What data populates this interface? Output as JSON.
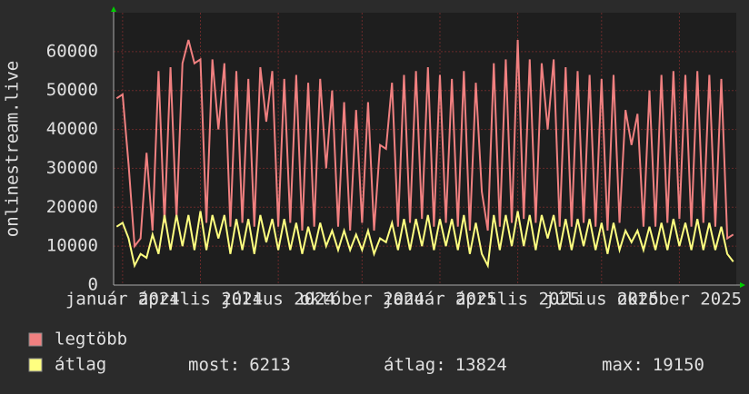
{
  "chart_data": {
    "type": "line",
    "y_label": "onlinestream.live",
    "categories": [
      null,
      "január 2024",
      null,
      null,
      null,
      null,
      null,
      null,
      null,
      null,
      null,
      null,
      null,
      null,
      "április 2024",
      null,
      null,
      null,
      null,
      null,
      null,
      null,
      null,
      null,
      null,
      null,
      null,
      "július 2024",
      null,
      null,
      null,
      null,
      null,
      null,
      null,
      null,
      null,
      null,
      null,
      null,
      null,
      "október 2024",
      null,
      null,
      null,
      null,
      null,
      null,
      null,
      null,
      null,
      null,
      null,
      null,
      "január 2025",
      null,
      null,
      null,
      null,
      null,
      null,
      null,
      null,
      null,
      null,
      null,
      null,
      "április 2025",
      null,
      null,
      null,
      null,
      null,
      null,
      null,
      null,
      null,
      null,
      null,
      null,
      null,
      "július 2025",
      null,
      null,
      null,
      null,
      null,
      null,
      null,
      null,
      null,
      null,
      null,
      null,
      "október 2025",
      null,
      null,
      null,
      null,
      null,
      null,
      null,
      null,
      null
    ],
    "series": [
      {
        "name": "legtöbb",
        "color": "#f08080",
        "values": [
          48000,
          49000,
          31000,
          10000,
          12000,
          34000,
          14000,
          55000,
          16000,
          56000,
          17000,
          57000,
          63000,
          57000,
          58000,
          16000,
          58000,
          40000,
          57000,
          15000,
          55000,
          16000,
          53000,
          15000,
          56000,
          42000,
          55000,
          15000,
          53000,
          16000,
          54000,
          14000,
          52000,
          15000,
          53000,
          30000,
          50000,
          15000,
          47000,
          14000,
          45000,
          16000,
          47000,
          14000,
          36000,
          35000,
          52000,
          15000,
          54000,
          16000,
          55000,
          17000,
          56000,
          15000,
          54000,
          16000,
          53000,
          15000,
          55000,
          14000,
          52000,
          24000,
          14000,
          57000,
          15000,
          58000,
          16000,
          63000,
          17000,
          58000,
          16000,
          57000,
          40000,
          58000,
          15000,
          56000,
          15000,
          55000,
          16000,
          54000,
          15000,
          53000,
          14000,
          54000,
          16000,
          45000,
          36000,
          44000,
          15000,
          50000,
          15000,
          54000,
          16000,
          55000,
          17000,
          54000,
          15000,
          55000,
          16000,
          54000,
          15000,
          53000,
          12000,
          13000
        ]
      },
      {
        "name": "átlag",
        "color": "#ffff80",
        "values": [
          15000,
          16000,
          12000,
          5000,
          8000,
          7000,
          13000,
          8000,
          18000,
          9000,
          18000,
          10000,
          18000,
          9000,
          19000,
          9000,
          18000,
          12000,
          18000,
          8000,
          17000,
          9000,
          17000,
          8000,
          18000,
          11000,
          17000,
          9000,
          17000,
          9000,
          16000,
          8000,
          15000,
          9000,
          16000,
          10000,
          14000,
          9000,
          14000,
          9000,
          13000,
          9000,
          14000,
          8000,
          12000,
          11000,
          16000,
          9000,
          17000,
          9000,
          17000,
          10000,
          18000,
          9000,
          17000,
          10000,
          17000,
          9000,
          18000,
          8000,
          16000,
          8000,
          5000,
          18000,
          9000,
          18000,
          10000,
          19000,
          10000,
          18000,
          9000,
          18000,
          12000,
          18000,
          9000,
          17000,
          9000,
          17000,
          10000,
          17000,
          9000,
          16000,
          8000,
          16000,
          9000,
          14000,
          11000,
          14000,
          9000,
          15000,
          9000,
          16000,
          9000,
          17000,
          10000,
          16000,
          9000,
          17000,
          9000,
          16000,
          9000,
          15000,
          8000,
          6000
        ]
      }
    ],
    "stats": [
      {
        "label": "most:",
        "value": 6213
      },
      {
        "label": "átlag:",
        "value": 13824
      },
      {
        "label": "max:",
        "value": 19150
      }
    ],
    "ylim": [
      0,
      70000
    ],
    "yticks": [
      0,
      10000,
      20000,
      30000,
      40000,
      50000,
      60000
    ],
    "grid": true
  }
}
